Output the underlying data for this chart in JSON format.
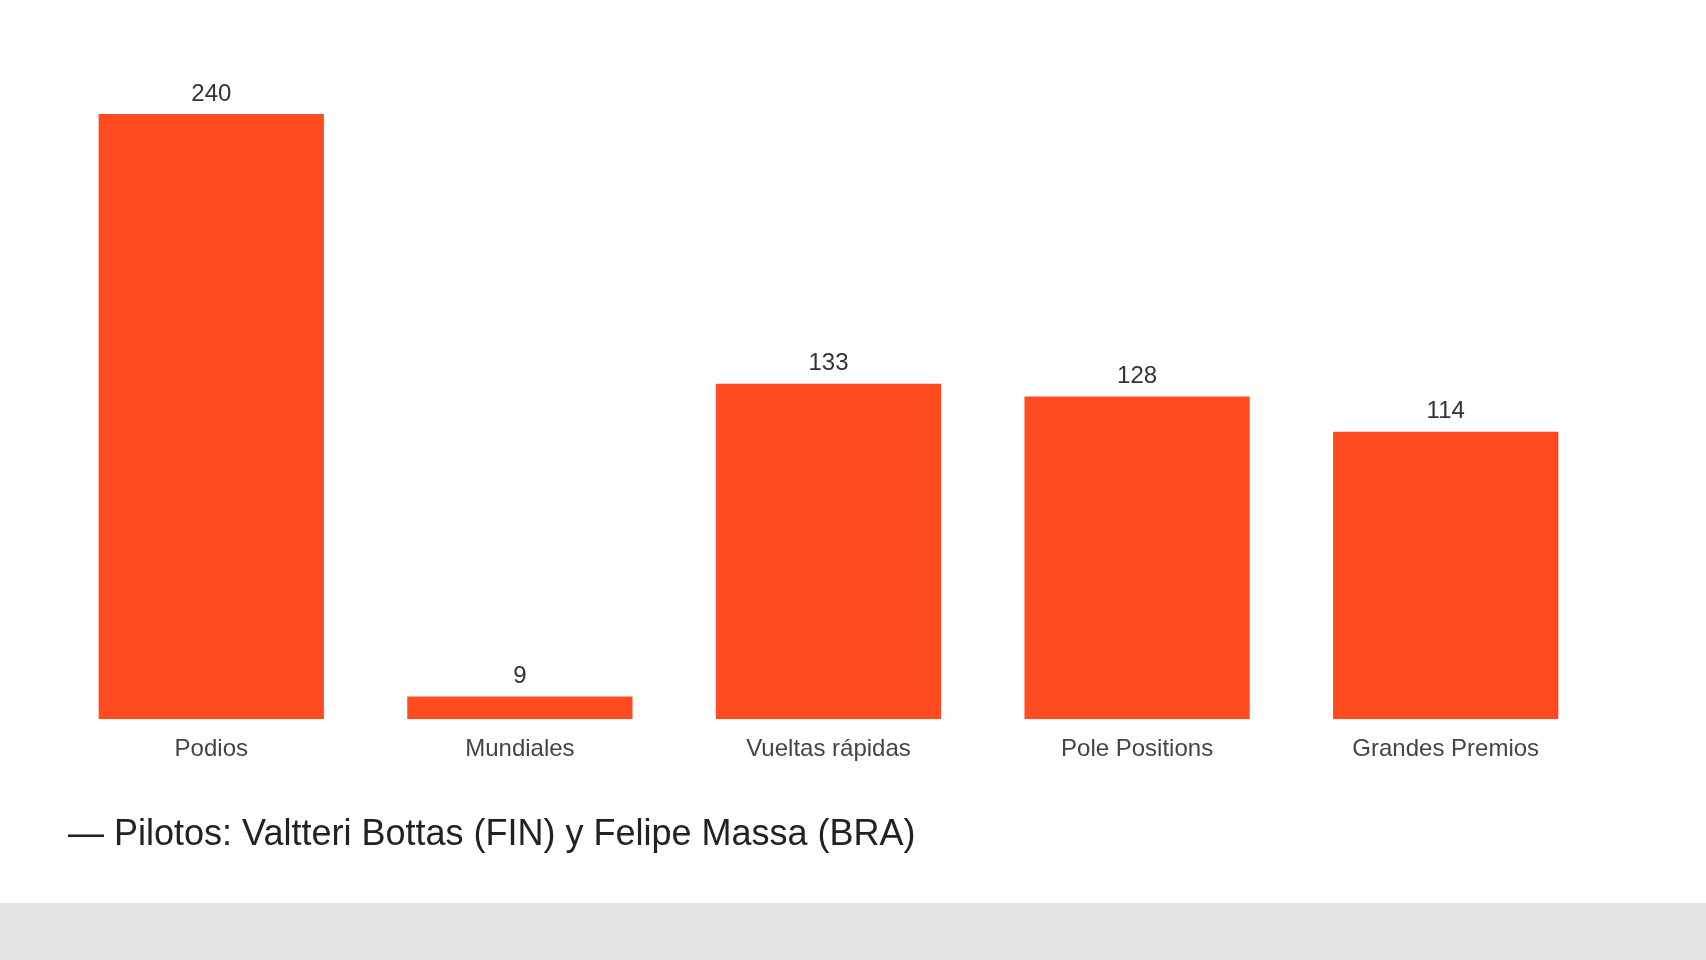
{
  "chart_data": {
    "type": "bar",
    "categories": [
      "Podios",
      "Mundiales",
      "Vueltas rápidas",
      "Pole Positions",
      "Grandes Premios"
    ],
    "values": [
      240,
      9,
      133,
      128,
      114
    ],
    "color": "#ff4b1f",
    "data_labels": true,
    "grid": false,
    "legend": false,
    "tick_labels": "x",
    "annotations": [
      "— Pilotos: Valtteri Bottas (FIN) y Felipe Massa (BRA)"
    ]
  }
}
